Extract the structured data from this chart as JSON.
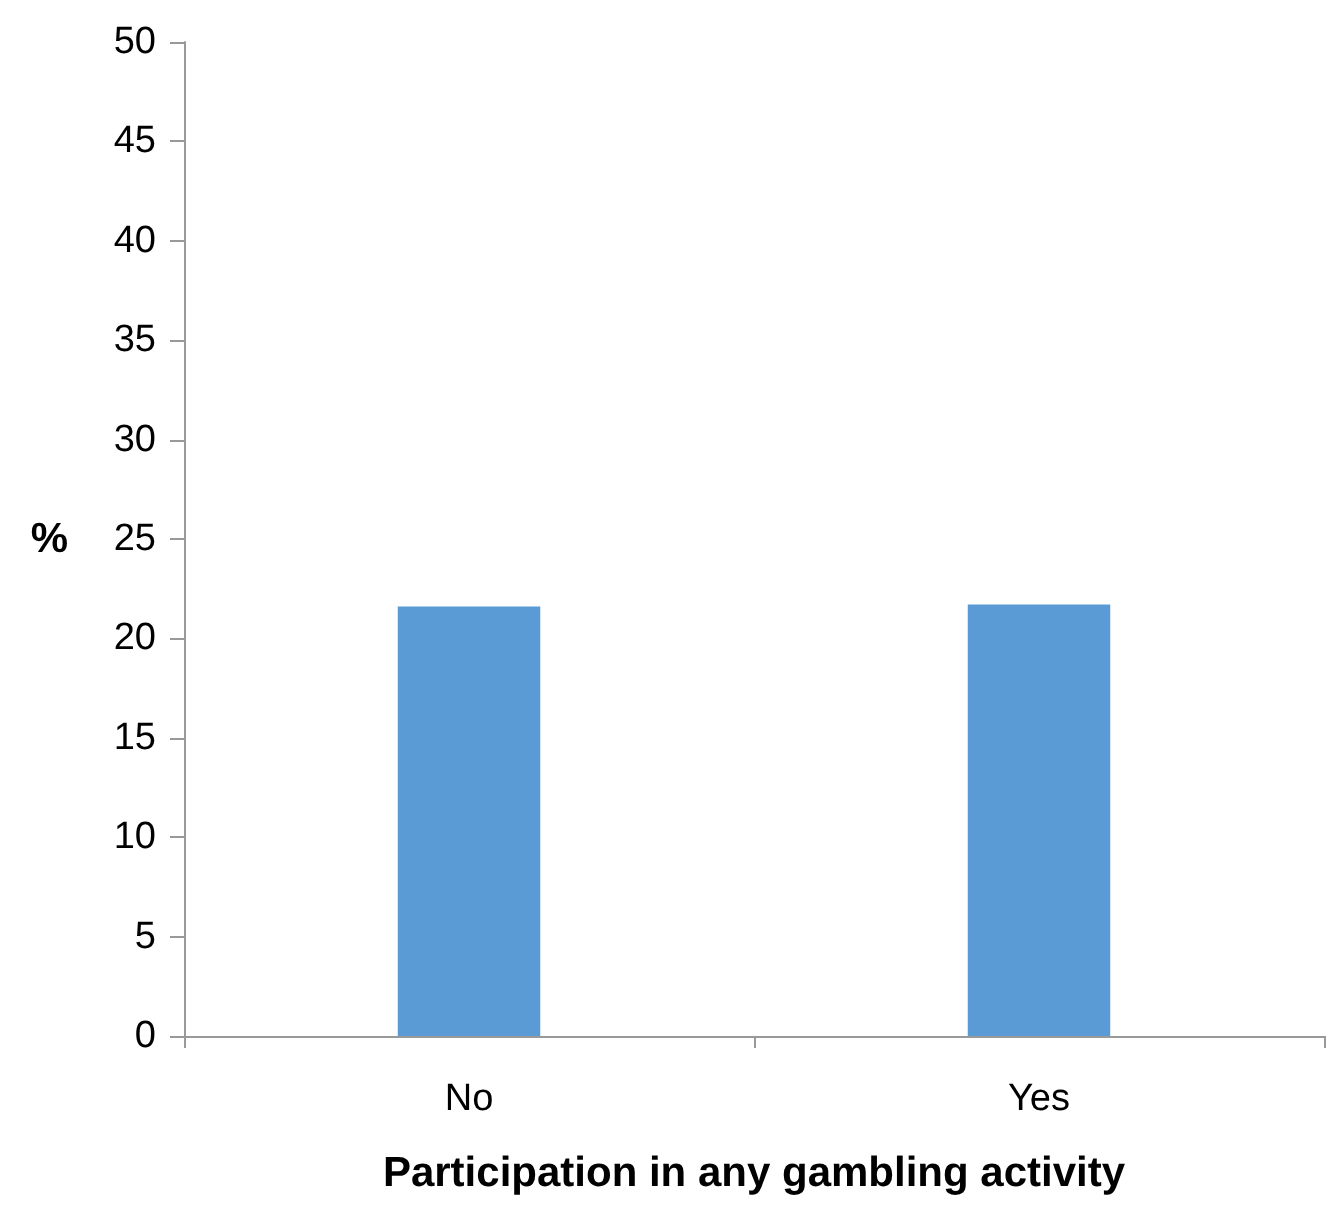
{
  "chart_data": {
    "type": "bar",
    "xlabel": "Participation in any gambling activity",
    "ylabel": "%",
    "categories": [
      "No",
      "Yes"
    ],
    "values": [
      21.6,
      21.7
    ],
    "color": "#5b9bd5",
    "ylim": [
      0,
      50
    ],
    "yticks": [
      0,
      5,
      10,
      15,
      20,
      25,
      30,
      35,
      40,
      45,
      50
    ],
    "grid": false
  }
}
